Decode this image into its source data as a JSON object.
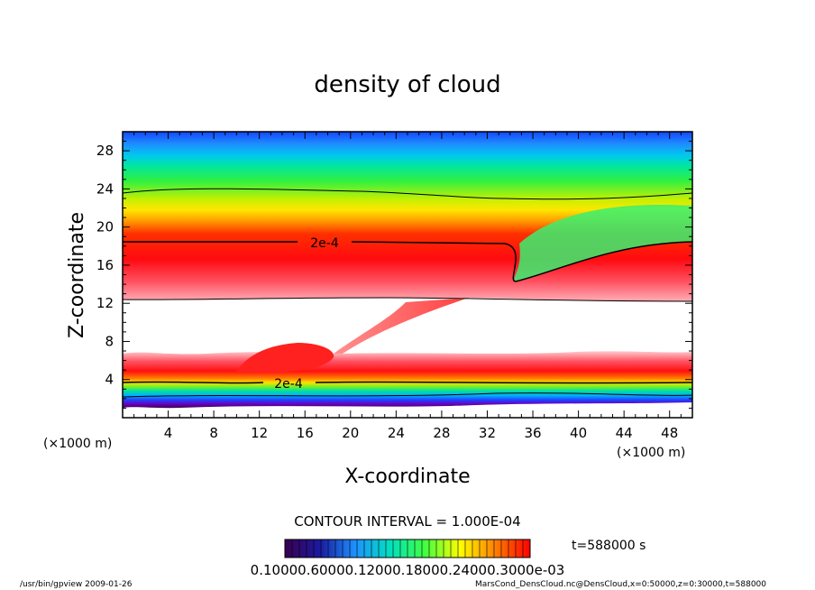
{
  "chart_data": {
    "type": "heatmap",
    "title": "density of cloud",
    "xlabel": "X-coordinate",
    "ylabel": "Z-coordinate",
    "x_unit": "(×1000 m)",
    "y_unit": "(×1000 m)",
    "xlim": [
      0,
      50
    ],
    "ylim": [
      0,
      30
    ],
    "x_ticks": [
      4,
      8,
      12,
      16,
      20,
      24,
      28,
      32,
      36,
      40,
      44,
      48
    ],
    "y_ticks": [
      4,
      8,
      12,
      16,
      20,
      24,
      28
    ],
    "contour_labels": [
      "2e-4",
      "2e-4"
    ],
    "contour_interval": "CONTOUR INTERVAL = 1.000E-04",
    "colorbar_label": "0.10000.60000.12000.18000.24000.3000e-03",
    "colorbar_colors": [
      "#3a0050",
      "#1a1aa0",
      "#1e90ff",
      "#00e0c0",
      "#40ff40",
      "#ffff00",
      "#ff8000",
      "#ff0000"
    ],
    "time_label": "t=588000 s",
    "footer_left": "/usr/bin/gpview   2009-01-26",
    "footer_right": "MarsCond_DensCloud.nc@DensCloud,x=0:50000,z=0:30000,t=588000"
  }
}
